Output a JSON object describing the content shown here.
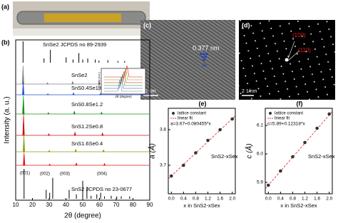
{
  "photo": {
    "label": "(a)"
  },
  "tem": {
    "label": "(c)",
    "spacing": "0.377 nm",
    "atom": "Sn",
    "scale": "1 nm"
  },
  "saed": {
    "label": "(d)",
    "spots": [
      "(100)",
      "(110)"
    ],
    "scale": "2 1/nm"
  },
  "chart_data": [
    {
      "type": "line",
      "panel": "(b)",
      "xlabel": "2θ (degree)",
      "ylabel": "Intensity (a. u.)",
      "xlim": [
        10,
        90
      ],
      "xticks": [
        10,
        20,
        30,
        40,
        50,
        60,
        70,
        80,
        90
      ],
      "peak_labels": [
        "(001)",
        "(002)",
        "(003)",
        "(004)"
      ],
      "inset": {
        "xlabel": "2θ (degree)",
        "ylabel": "Intensity (a.u.)"
      },
      "series": [
        {
          "name": "SnSe2 JCPDS no 89-2939",
          "color": "#000000",
          "style": "stick",
          "x": [
            14.4,
            26.9,
            30.7,
            40.1,
            44.2,
            47.7,
            50.0,
            53.0,
            57.5,
            59.7,
            65.0,
            71.0,
            75.0
          ],
          "values": [
            100,
            20,
            60,
            25,
            15,
            45,
            15,
            20,
            15,
            10,
            12,
            8,
            8
          ]
        },
        {
          "name": "SnSe2",
          "color": "#808080",
          "style": "curve",
          "x": [
            14.4,
            29.0,
            44.0,
            60.0
          ],
          "values": [
            100,
            8,
            15,
            10
          ]
        },
        {
          "name": "SnS0.4Se1.6",
          "color": "#1f4fd0",
          "style": "curve",
          "x": [
            14.5,
            29.2,
            44.5,
            60.5
          ],
          "values": [
            100,
            8,
            15,
            10
          ]
        },
        {
          "name": "SnS0.8Se1.2",
          "color": "#109010",
          "style": "curve",
          "x": [
            14.6,
            29.5,
            45.0,
            61.2
          ],
          "values": [
            100,
            8,
            15,
            10
          ]
        },
        {
          "name": "SnS1.2Se0.8",
          "color": "#d01010",
          "style": "curve",
          "x": [
            14.7,
            29.8,
            45.4,
            61.8
          ],
          "values": [
            100,
            8,
            15,
            12
          ]
        },
        {
          "name": "SnS1.6Se0.4",
          "color": "#8a9a10",
          "style": "curve",
          "x": [
            14.9,
            30.0,
            45.8,
            62.4
          ],
          "values": [
            100,
            8,
            15,
            12
          ]
        },
        {
          "color": "#e01010",
          "style": "curve",
          "x": [
            15.0,
            30.3,
            46.2,
            63.0
          ],
          "values": [
            100,
            10,
            18,
            14
          ]
        },
        {
          "name": "SnS2 JCPDS no 23-0677",
          "color": "#000000",
          "style": "stick",
          "x": [
            15.0,
            28.2,
            30.3,
            32.1,
            41.9,
            46.2,
            50.0,
            52.5,
            55.0,
            58.4,
            60.7,
            63.0,
            67.0,
            70.3,
            73.0,
            78.0
          ],
          "values": [
            100,
            30,
            20,
            70,
            30,
            15,
            60,
            40,
            10,
            15,
            20,
            8,
            10,
            8,
            8,
            8
          ]
        }
      ]
    },
    {
      "type": "scatter",
      "panel": "(e)",
      "xlabel": "x in SnS2-xSex",
      "ylabel": "a (Å)",
      "xlim": [
        -0.1,
        2.1
      ],
      "xticks": [
        {
          "value": 0,
          "label": "0.0"
        },
        0.4,
        0.8,
        1.2,
        1.6,
        {
          "value": 2,
          "label": "2.0"
        }
      ],
      "ylim": [
        3.62,
        3.86
      ],
      "yticks": [
        3.7,
        3.8
      ],
      "x": [
        0,
        0.4,
        0.8,
        1.2,
        1.6,
        2.0
      ],
      "values": [
        3.67,
        3.7,
        3.735,
        3.77,
        3.8,
        3.83
      ],
      "color": "#333333",
      "fit_color": "#e03030",
      "legend": [
        "lattice constant",
        "linear fit"
      ],
      "equation": "a=3.67+0.080455*x",
      "fit": {
        "intercept": 3.67,
        "slope": 0.080455
      },
      "annotation": "SnS2-xSex"
    },
    {
      "type": "scatter",
      "panel": "(f)",
      "xlabel": "x in SnS2-xSex",
      "ylabel": "c (Å)",
      "xlim": [
        -0.1,
        2.1
      ],
      "xticks": [
        {
          "value": 0,
          "label": "0.0"
        },
        0.4,
        0.8,
        1.2,
        1.6,
        {
          "value": 2,
          "label": "2.0"
        }
      ],
      "ylim": [
        5.86,
        6.16
      ],
      "yticks": [
        5.9,
        {
          "value": 6,
          "label": "6.0"
        },
        6.1
      ],
      "x": [
        0,
        0.4,
        0.8,
        1.2,
        1.6,
        2.0
      ],
      "values": [
        5.89,
        5.94,
        5.99,
        6.04,
        6.09,
        6.14
      ],
      "color": "#333333",
      "fit_color": "#e03030",
      "legend": [
        "lattice constant",
        "linear fit"
      ],
      "equation": "c=5.89+0.12318*x",
      "fit": {
        "intercept": 5.89,
        "slope": 0.12318
      },
      "annotation": "SnS2-xSex"
    }
  ]
}
